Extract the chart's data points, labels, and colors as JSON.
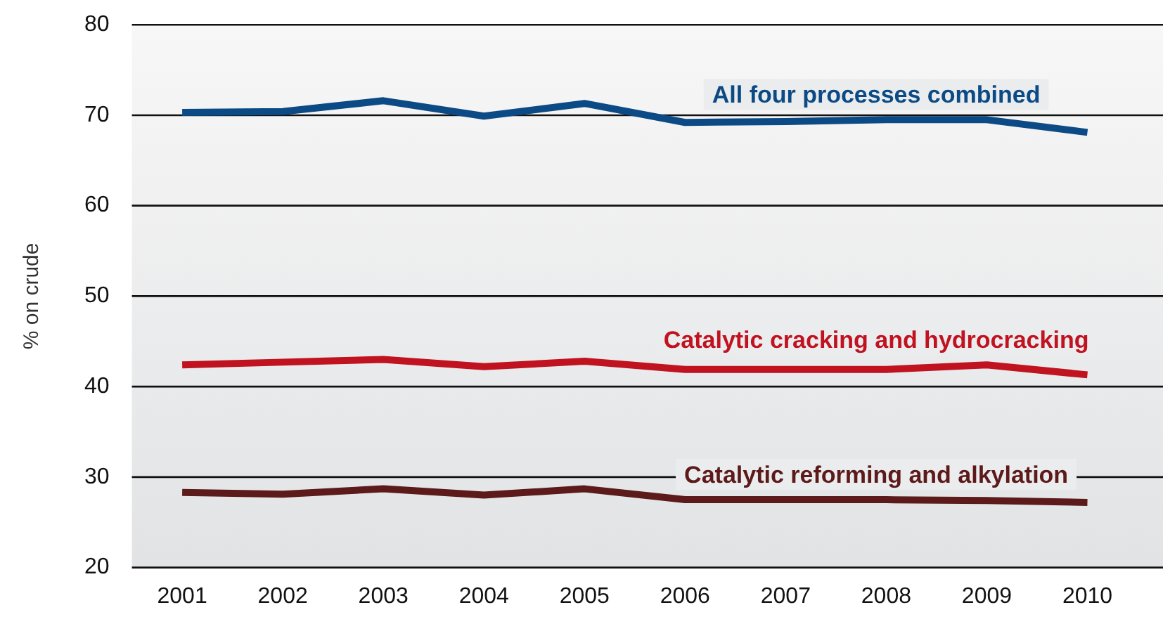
{
  "chart_data": {
    "type": "line",
    "ylabel": "% on crude",
    "categories": [
      "2001",
      "2002",
      "2003",
      "2004",
      "2005",
      "2006",
      "2007",
      "2008",
      "2009",
      "2010"
    ],
    "series": [
      {
        "name": "All four processes combined",
        "color": "#0b4a84",
        "values": [
          70.3,
          70.4,
          71.6,
          69.9,
          71.3,
          69.2,
          69.3,
          69.5,
          69.5,
          68.1
        ]
      },
      {
        "name": "Catalytic cracking and hydrocracking",
        "color": "#c0121f",
        "values": [
          42.4,
          42.7,
          43.0,
          42.2,
          42.8,
          41.9,
          41.9,
          41.9,
          42.4,
          41.3
        ]
      },
      {
        "name": "Catalytic reforming and alkylation",
        "color": "#5c1a1a",
        "values": [
          28.3,
          28.1,
          28.7,
          28.0,
          28.7,
          27.5,
          27.5,
          27.5,
          27.4,
          27.2
        ]
      }
    ],
    "ylim": [
      20,
      80
    ],
    "yticks": [
      20,
      30,
      40,
      50,
      60,
      70,
      80
    ],
    "grid": "y",
    "legend": false,
    "marker": "none",
    "line_style": "solid"
  }
}
